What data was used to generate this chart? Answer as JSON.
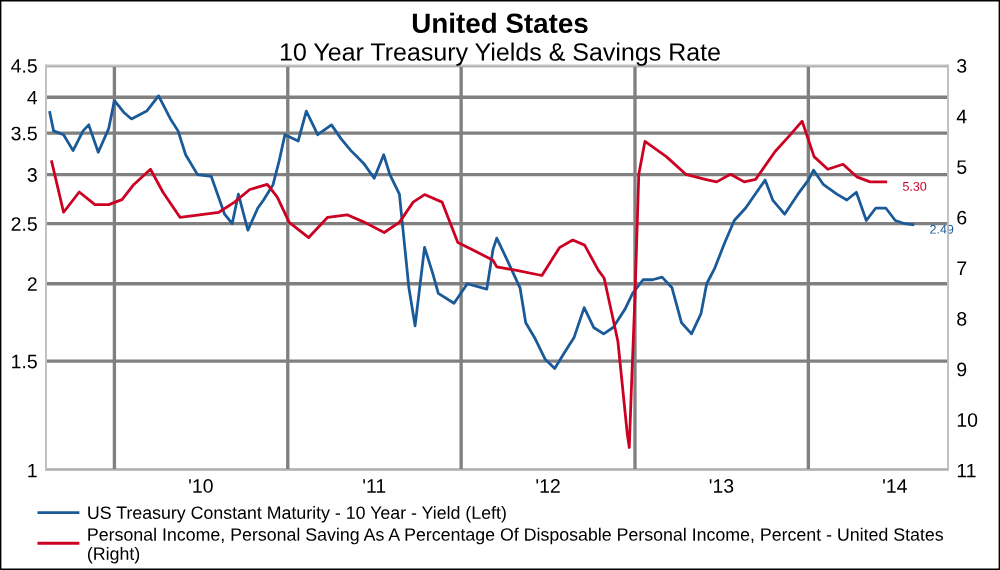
{
  "chart_data": {
    "type": "line",
    "title": "United States",
    "subtitle": "10 Year Treasury Yields & Savings Rate",
    "xlim": [
      "2009-08-10",
      "2014-10-22"
    ],
    "xticks": [
      {
        "value": "2010-01-01",
        "label": null
      },
      {
        "value": "2010-07-02",
        "label": "'10"
      },
      {
        "value": "2011-01-01",
        "label": null
      },
      {
        "value": "2011-07-02",
        "label": "'11"
      },
      {
        "value": "2012-01-01",
        "label": null
      },
      {
        "value": "2012-07-02",
        "label": "'12"
      },
      {
        "value": "2013-01-01",
        "label": null
      },
      {
        "value": "2013-07-02",
        "label": "'13"
      },
      {
        "value": "2014-01-01",
        "label": null
      },
      {
        "value": "2014-07-02",
        "label": "'14"
      }
    ],
    "log": "y",
    "ylim": [
      1,
      4.5
    ],
    "yticks": [
      1,
      1.5,
      2,
      2.5,
      3,
      3.5,
      4,
      4.5
    ],
    "y2lim": [
      11,
      3
    ],
    "y2ticks": [
      3,
      4,
      5,
      6,
      7,
      8,
      9,
      10,
      11
    ],
    "grid": true,
    "legend": "bottom",
    "series": [
      {
        "name": "US Treasury Constant Maturity - 10 Year - Yield (Left)",
        "color": "#1a5a98",
        "axis": "y",
        "x": [
          "2009-08-18",
          "2009-08-26",
          "2009-09-16",
          "2009-10-06",
          "2009-10-27",
          "2009-11-08",
          "2009-11-28",
          "2009-12-20",
          "2010-01-01",
          "2010-01-21",
          "2010-02-06",
          "2010-03-10",
          "2010-04-04",
          "2010-04-29",
          "2010-05-15",
          "2010-05-31",
          "2010-06-25",
          "2010-07-24",
          "2010-08-21",
          "2010-09-06",
          "2010-09-19",
          "2010-10-09",
          "2010-10-30",
          "2010-11-11",
          "2010-12-01",
          "2010-12-14",
          "2010-12-26",
          "2011-01-23",
          "2011-02-09",
          "2011-03-05",
          "2011-04-03",
          "2011-04-23",
          "2011-05-14",
          "2011-06-11",
          "2011-07-02",
          "2011-07-22",
          "2011-08-04",
          "2011-08-24",
          "2011-09-13",
          "2011-09-26",
          "2011-10-16",
          "2011-11-02",
          "2011-11-14",
          "2011-12-17",
          "2012-01-14",
          "2012-02-24",
          "2012-03-08",
          "2012-03-16",
          "2012-04-05",
          "2012-05-04",
          "2012-05-16",
          "2012-06-05",
          "2012-06-26",
          "2012-07-16",
          "2012-08-06",
          "2012-08-26",
          "2012-09-16",
          "2012-10-06",
          "2012-10-27",
          "2012-11-16",
          "2012-12-11",
          "2012-12-27",
          "2013-01-18",
          "2013-02-07",
          "2013-02-27",
          "2013-03-20",
          "2013-04-09",
          "2013-04-30",
          "2013-05-20",
          "2013-06-01",
          "2013-06-18",
          "2013-07-08",
          "2013-07-29",
          "2013-08-22",
          "2013-09-11",
          "2013-10-02",
          "2013-10-18",
          "2013-11-12",
          "2013-12-10",
          "2014-01-01",
          "2014-01-12",
          "2014-02-02",
          "2014-03-02",
          "2014-03-23",
          "2014-04-12",
          "2014-05-03",
          "2014-05-23",
          "2014-06-13",
          "2014-07-03",
          "2014-07-23",
          "2014-08-09"
        ],
        "values": [
          3.78,
          3.53,
          3.48,
          3.28,
          3.53,
          3.61,
          3.26,
          3.56,
          3.95,
          3.78,
          3.69,
          3.8,
          4.02,
          3.69,
          3.53,
          3.23,
          3.0,
          2.98,
          2.59,
          2.5,
          2.79,
          2.44,
          2.65,
          2.73,
          2.89,
          3.16,
          3.48,
          3.4,
          3.8,
          3.48,
          3.61,
          3.43,
          3.28,
          3.12,
          2.96,
          3.23,
          3.0,
          2.79,
          1.97,
          1.71,
          2.29,
          2.08,
          1.93,
          1.86,
          2.0,
          1.96,
          2.27,
          2.37,
          2.2,
          1.97,
          1.73,
          1.63,
          1.51,
          1.46,
          1.55,
          1.64,
          1.83,
          1.7,
          1.66,
          1.7,
          1.82,
          1.93,
          2.03,
          2.03,
          2.05,
          1.97,
          1.73,
          1.66,
          1.79,
          2.0,
          2.12,
          2.32,
          2.53,
          2.65,
          2.79,
          2.94,
          2.73,
          2.59,
          2.79,
          2.94,
          3.05,
          2.89,
          2.79,
          2.73,
          2.81,
          2.53,
          2.65,
          2.65,
          2.53,
          2.5,
          2.49
        ],
        "value_labels": [
          null,
          null,
          null,
          null,
          null,
          null,
          null,
          null,
          null,
          null,
          null,
          null,
          null,
          null,
          null,
          null,
          null,
          null,
          null,
          null,
          null,
          null,
          null,
          null,
          null,
          null,
          null,
          null,
          null,
          null,
          null,
          null,
          null,
          null,
          null,
          null,
          null,
          null,
          null,
          null,
          null,
          null,
          null,
          null,
          null,
          null,
          null,
          null,
          null,
          null,
          null,
          null,
          null,
          null,
          null,
          null,
          null,
          null,
          null,
          null,
          null,
          null,
          null,
          null,
          null,
          null,
          null,
          null,
          null,
          null,
          null,
          null,
          null,
          null,
          null,
          null,
          null,
          null,
          null,
          null,
          null,
          null,
          null,
          null,
          null,
          null,
          null,
          null,
          null,
          null,
          "2.49"
        ]
      },
      {
        "name": "Personal Income, Personal Saving As A Percentage Of Disposable Personal Income, Percent - United States  (Right)",
        "color": "#cc0022",
        "axis": "y2",
        "x": [
          "2009-08-22",
          "2009-09-16",
          "2009-10-19",
          "2009-11-21",
          "2009-12-20",
          "2010-01-17",
          "2010-02-11",
          "2010-03-18",
          "2010-04-13",
          "2010-05-19",
          "2010-06-29",
          "2010-08-09",
          "2010-09-11",
          "2010-10-13",
          "2010-11-19",
          "2010-12-10",
          "2011-01-04",
          "2011-02-14",
          "2011-03-26",
          "2011-05-06",
          "2011-06-12",
          "2011-07-23",
          "2011-08-24",
          "2011-09-22",
          "2011-10-16",
          "2011-11-22",
          "2011-12-25",
          "2012-01-27",
          "2012-03-08",
          "2012-03-16",
          "2012-04-27",
          "2012-06-19",
          "2012-07-26",
          "2012-08-23",
          "2012-09-17",
          "2012-10-16",
          "2012-10-28",
          "2012-11-26",
          "2012-12-16",
          "2012-12-20",
          "2012-12-24",
          "2013-01-01",
          "2013-01-09",
          "2013-01-22",
          "2013-03-08",
          "2013-04-18",
          "2013-05-29",
          "2013-06-22",
          "2013-07-21",
          "2013-08-19",
          "2013-09-12",
          "2013-10-23",
          "2013-11-21",
          "2013-12-19",
          "2014-01-13",
          "2014-02-11",
          "2014-03-15",
          "2014-04-13",
          "2014-05-11",
          "2014-06-13"
        ],
        "values": [
          4.9,
          5.9,
          5.5,
          5.75,
          5.75,
          5.65,
          5.35,
          5.05,
          5.5,
          6.0,
          5.95,
          5.9,
          5.7,
          5.45,
          5.35,
          5.6,
          6.1,
          6.4,
          6.0,
          5.95,
          6.1,
          6.3,
          6.1,
          5.7,
          5.55,
          5.7,
          6.5,
          6.65,
          6.85,
          6.98,
          7.05,
          7.15,
          6.6,
          6.45,
          6.55,
          7.05,
          7.2,
          8.45,
          10.3,
          10.55,
          9.5,
          7.55,
          5.15,
          4.5,
          4.8,
          5.15,
          5.25,
          5.3,
          5.15,
          5.3,
          5.25,
          4.7,
          4.4,
          4.1,
          4.8,
          5.05,
          4.95,
          5.2,
          5.3,
          5.3
        ],
        "value_labels": [
          null,
          null,
          null,
          null,
          null,
          null,
          null,
          null,
          null,
          null,
          null,
          null,
          null,
          null,
          null,
          null,
          null,
          null,
          null,
          null,
          null,
          null,
          null,
          null,
          null,
          null,
          null,
          null,
          null,
          null,
          null,
          null,
          null,
          null,
          null,
          null,
          null,
          null,
          null,
          null,
          null,
          null,
          null,
          null,
          null,
          null,
          null,
          null,
          null,
          null,
          null,
          null,
          null,
          null,
          null,
          null,
          null,
          null,
          null,
          "5.30"
        ]
      }
    ]
  }
}
